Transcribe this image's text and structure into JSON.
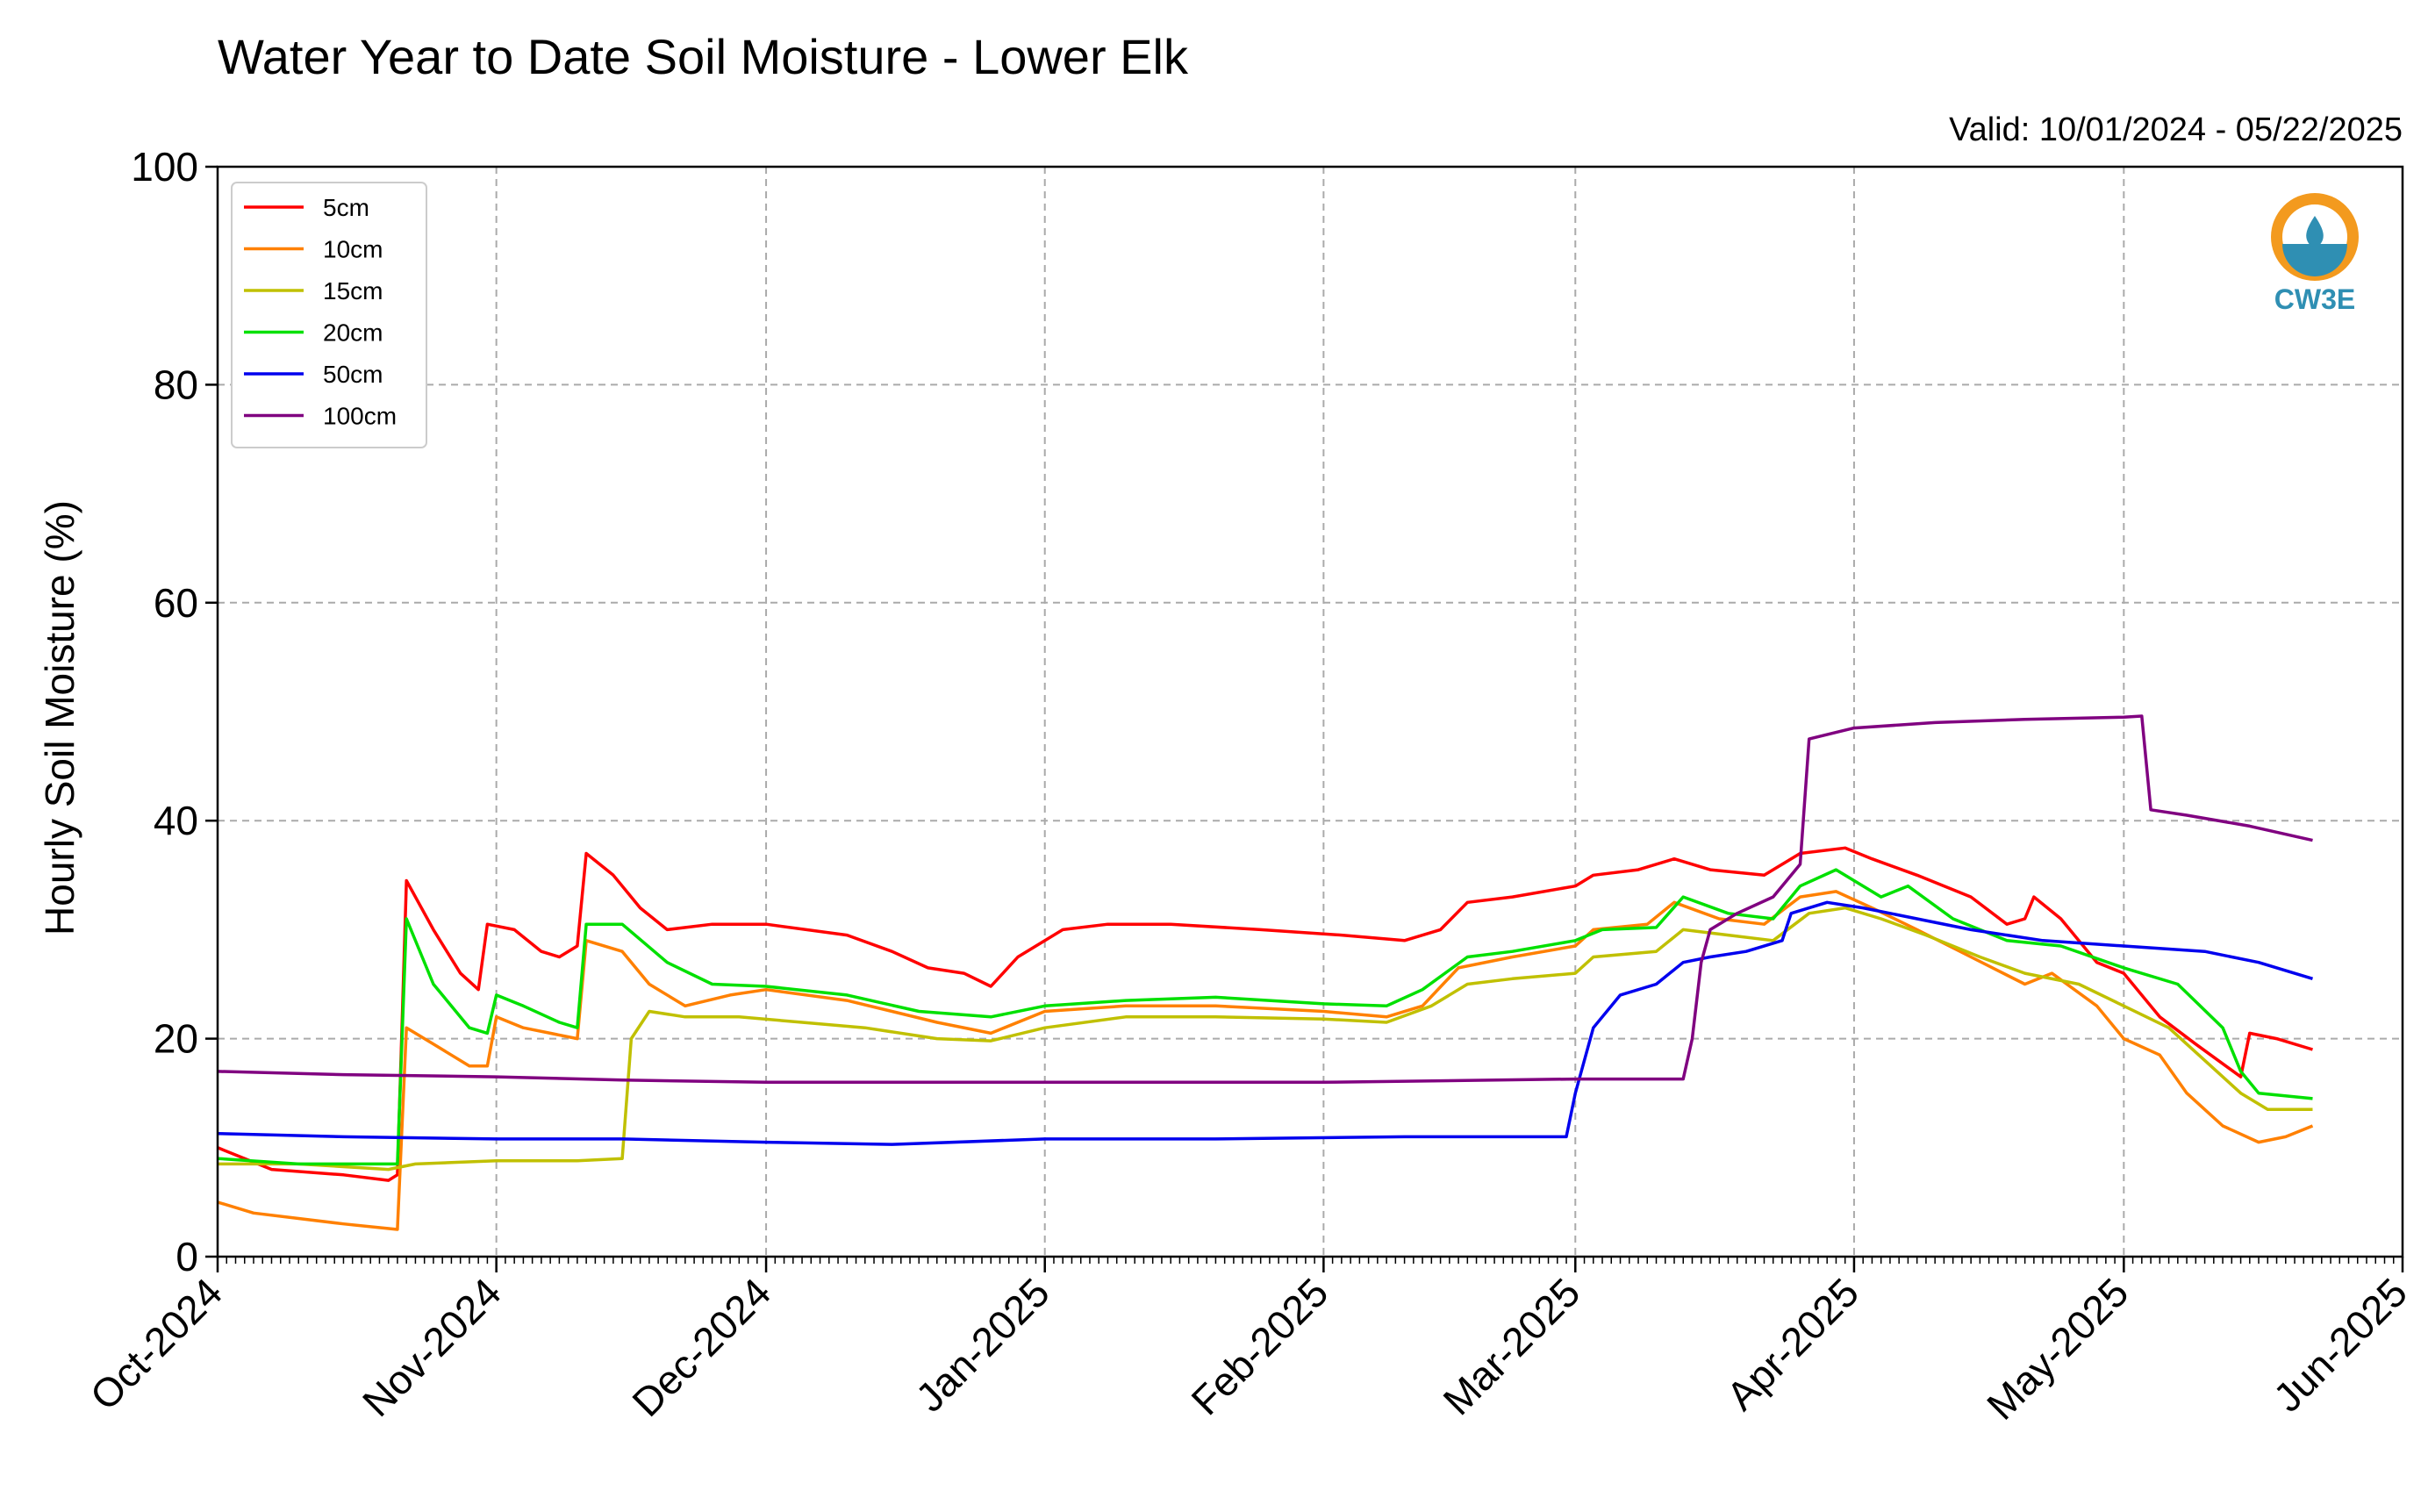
{
  "chart_data": {
    "type": "line",
    "title": "Water Year to Date Soil Moisture - Lower Elk",
    "subtitle": "Valid: 10/01/2024 - 05/22/2025",
    "ylabel": "Hourly Soil Moisture (%)",
    "xlabel": "",
    "ylim": [
      0,
      100
    ],
    "yticks": [
      0,
      20,
      40,
      60,
      80,
      100
    ],
    "xlim": [
      "2024-10-01",
      "2025-06-01"
    ],
    "xticks": [
      {
        "date": "2024-10-01",
        "label": "Oct-2024"
      },
      {
        "date": "2024-11-01",
        "label": "Nov-2024"
      },
      {
        "date": "2024-12-01",
        "label": "Dec-2024"
      },
      {
        "date": "2025-01-01",
        "label": "Jan-2025"
      },
      {
        "date": "2025-02-01",
        "label": "Feb-2025"
      },
      {
        "date": "2025-03-01",
        "label": "Mar-2025"
      },
      {
        "date": "2025-04-01",
        "label": "Apr-2025"
      },
      {
        "date": "2025-05-01",
        "label": "May-2025"
      },
      {
        "date": "2025-06-01",
        "label": "Jun-2025"
      }
    ],
    "grid": true,
    "legend_position": "top-left",
    "logo": "CW3E",
    "series": [
      {
        "name": "5cm",
        "color": "#ff0000",
        "points": [
          [
            "2024-10-01",
            10
          ],
          [
            "2024-10-07",
            8
          ],
          [
            "2024-10-15",
            7.5
          ],
          [
            "2024-10-20",
            7
          ],
          [
            "2024-10-21",
            7.5
          ],
          [
            "2024-10-22",
            34.5
          ],
          [
            "2024-10-25",
            30
          ],
          [
            "2024-10-28",
            26
          ],
          [
            "2024-10-30",
            24.5
          ],
          [
            "2024-10-31",
            30.5
          ],
          [
            "2024-11-03",
            30
          ],
          [
            "2024-11-06",
            28
          ],
          [
            "2024-11-08",
            27.5
          ],
          [
            "2024-11-10",
            28.5
          ],
          [
            "2024-11-11",
            37
          ],
          [
            "2024-11-14",
            35
          ],
          [
            "2024-11-17",
            32
          ],
          [
            "2024-11-20",
            30
          ],
          [
            "2024-11-25",
            30.5
          ],
          [
            "2024-12-01",
            30.5
          ],
          [
            "2024-12-10",
            29.5
          ],
          [
            "2024-12-15",
            28
          ],
          [
            "2024-12-19",
            26.5
          ],
          [
            "2024-12-23",
            26
          ],
          [
            "2024-12-26",
            24.8
          ],
          [
            "2024-12-29",
            27.5
          ],
          [
            "2025-01-03",
            30
          ],
          [
            "2025-01-08",
            30.5
          ],
          [
            "2025-01-15",
            30.5
          ],
          [
            "2025-01-25",
            30
          ],
          [
            "2025-02-03",
            29.5
          ],
          [
            "2025-02-10",
            29
          ],
          [
            "2025-02-14",
            30
          ],
          [
            "2025-02-17",
            32.5
          ],
          [
            "2025-02-22",
            33
          ],
          [
            "2025-03-01",
            34
          ],
          [
            "2025-03-03",
            35
          ],
          [
            "2025-03-08",
            35.5
          ],
          [
            "2025-03-12",
            36.5
          ],
          [
            "2025-03-16",
            35.5
          ],
          [
            "2025-03-22",
            35
          ],
          [
            "2025-03-26",
            37
          ],
          [
            "2025-03-31",
            37.5
          ],
          [
            "2025-04-03",
            36.5
          ],
          [
            "2025-04-08",
            35
          ],
          [
            "2025-04-14",
            33
          ],
          [
            "2025-04-18",
            30.5
          ],
          [
            "2025-04-20",
            31
          ],
          [
            "2025-04-21",
            33
          ],
          [
            "2025-04-24",
            31
          ],
          [
            "2025-04-28",
            27
          ],
          [
            "2025-05-01",
            26
          ],
          [
            "2025-05-05",
            22
          ],
          [
            "2025-05-09",
            19.5
          ],
          [
            "2025-05-14",
            16.5
          ],
          [
            "2025-05-15",
            20.5
          ],
          [
            "2025-05-18",
            20
          ],
          [
            "2025-05-22",
            19
          ]
        ]
      },
      {
        "name": "10cm",
        "color": "#ff8000",
        "points": [
          [
            "2024-10-01",
            5
          ],
          [
            "2024-10-05",
            4
          ],
          [
            "2024-10-10",
            3.5
          ],
          [
            "2024-10-15",
            3
          ],
          [
            "2024-10-21",
            2.5
          ],
          [
            "2024-10-22",
            21
          ],
          [
            "2024-10-25",
            19.5
          ],
          [
            "2024-10-29",
            17.5
          ],
          [
            "2024-10-31",
            17.5
          ],
          [
            "2024-11-01",
            22
          ],
          [
            "2024-11-04",
            21
          ],
          [
            "2024-11-07",
            20.5
          ],
          [
            "2024-11-10",
            20
          ],
          [
            "2024-11-11",
            29
          ],
          [
            "2024-11-15",
            28
          ],
          [
            "2024-11-18",
            25
          ],
          [
            "2024-11-22",
            23
          ],
          [
            "2024-11-27",
            24
          ],
          [
            "2024-12-01",
            24.5
          ],
          [
            "2024-12-10",
            23.5
          ],
          [
            "2024-12-15",
            22.5
          ],
          [
            "2024-12-20",
            21.5
          ],
          [
            "2024-12-26",
            20.5
          ],
          [
            "2025-01-01",
            22.5
          ],
          [
            "2025-01-10",
            23
          ],
          [
            "2025-01-20",
            23
          ],
          [
            "2025-02-01",
            22.5
          ],
          [
            "2025-02-08",
            22
          ],
          [
            "2025-02-12",
            23
          ],
          [
            "2025-02-16",
            26.5
          ],
          [
            "2025-02-22",
            27.5
          ],
          [
            "2025-03-01",
            28.5
          ],
          [
            "2025-03-03",
            30
          ],
          [
            "2025-03-09",
            30.5
          ],
          [
            "2025-03-12",
            32.5
          ],
          [
            "2025-03-17",
            31
          ],
          [
            "2025-03-22",
            30.5
          ],
          [
            "2025-03-26",
            33
          ],
          [
            "2025-03-30",
            33.5
          ],
          [
            "2025-04-03",
            32
          ],
          [
            "2025-04-08",
            30
          ],
          [
            "2025-04-14",
            27.5
          ],
          [
            "2025-04-20",
            25
          ],
          [
            "2025-04-23",
            26
          ],
          [
            "2025-04-28",
            23
          ],
          [
            "2025-05-01",
            20
          ],
          [
            "2025-05-05",
            18.5
          ],
          [
            "2025-05-08",
            15
          ],
          [
            "2025-05-12",
            12
          ],
          [
            "2025-05-16",
            10.5
          ],
          [
            "2025-05-19",
            11
          ],
          [
            "2025-05-22",
            12
          ]
        ]
      },
      {
        "name": "15cm",
        "color": "#c0c000",
        "points": [
          [
            "2024-10-01",
            8.5
          ],
          [
            "2024-10-10",
            8.5
          ],
          [
            "2024-10-20",
            8
          ],
          [
            "2024-10-23",
            8.5
          ],
          [
            "2024-11-01",
            8.8
          ],
          [
            "2024-11-10",
            8.8
          ],
          [
            "2024-11-15",
            9
          ],
          [
            "2024-11-16",
            20
          ],
          [
            "2024-11-18",
            22.5
          ],
          [
            "2024-11-22",
            22
          ],
          [
            "2024-11-28",
            22
          ],
          [
            "2024-12-05",
            21.5
          ],
          [
            "2024-12-12",
            21
          ],
          [
            "2024-12-20",
            20
          ],
          [
            "2024-12-26",
            19.8
          ],
          [
            "2025-01-01",
            21
          ],
          [
            "2025-01-10",
            22
          ],
          [
            "2025-01-20",
            22
          ],
          [
            "2025-02-01",
            21.8
          ],
          [
            "2025-02-08",
            21.5
          ],
          [
            "2025-02-13",
            23
          ],
          [
            "2025-02-17",
            25
          ],
          [
            "2025-02-22",
            25.5
          ],
          [
            "2025-03-01",
            26
          ],
          [
            "2025-03-03",
            27.5
          ],
          [
            "2025-03-10",
            28
          ],
          [
            "2025-03-13",
            30
          ],
          [
            "2025-03-18",
            29.5
          ],
          [
            "2025-03-23",
            29
          ],
          [
            "2025-03-27",
            31.5
          ],
          [
            "2025-03-31",
            32
          ],
          [
            "2025-04-04",
            31
          ],
          [
            "2025-04-09",
            29.5
          ],
          [
            "2025-04-15",
            27.5
          ],
          [
            "2025-04-20",
            26
          ],
          [
            "2025-04-26",
            25
          ],
          [
            "2025-05-01",
            23
          ],
          [
            "2025-05-06",
            21
          ],
          [
            "2025-05-10",
            18
          ],
          [
            "2025-05-14",
            15
          ],
          [
            "2025-05-17",
            13.5
          ],
          [
            "2025-05-22",
            13.5
          ]
        ]
      },
      {
        "name": "20cm",
        "color": "#00e000",
        "points": [
          [
            "2024-10-01",
            9
          ],
          [
            "2024-10-10",
            8.5
          ],
          [
            "2024-10-21",
            8.5
          ],
          [
            "2024-10-22",
            31
          ],
          [
            "2024-10-25",
            25
          ],
          [
            "2024-10-29",
            21
          ],
          [
            "2024-10-31",
            20.5
          ],
          [
            "2024-11-01",
            24
          ],
          [
            "2024-11-04",
            23
          ],
          [
            "2024-11-08",
            21.5
          ],
          [
            "2024-11-10",
            21
          ],
          [
            "2024-11-11",
            30.5
          ],
          [
            "2024-11-15",
            30.5
          ],
          [
            "2024-11-20",
            27
          ],
          [
            "2024-11-25",
            25
          ],
          [
            "2024-12-01",
            24.8
          ],
          [
            "2024-12-10",
            24
          ],
          [
            "2024-12-18",
            22.5
          ],
          [
            "2024-12-26",
            22
          ],
          [
            "2025-01-01",
            23
          ],
          [
            "2025-01-10",
            23.5
          ],
          [
            "2025-01-20",
            23.8
          ],
          [
            "2025-02-01",
            23.2
          ],
          [
            "2025-02-08",
            23
          ],
          [
            "2025-02-12",
            24.5
          ],
          [
            "2025-02-17",
            27.5
          ],
          [
            "2025-02-22",
            28
          ],
          [
            "2025-03-01",
            29
          ],
          [
            "2025-03-04",
            30
          ],
          [
            "2025-03-10",
            30.2
          ],
          [
            "2025-03-13",
            33
          ],
          [
            "2025-03-18",
            31.5
          ],
          [
            "2025-03-23",
            31
          ],
          [
            "2025-03-26",
            34
          ],
          [
            "2025-03-30",
            35.5
          ],
          [
            "2025-04-04",
            33
          ],
          [
            "2025-04-07",
            34
          ],
          [
            "2025-04-12",
            31
          ],
          [
            "2025-04-18",
            29
          ],
          [
            "2025-04-24",
            28.5
          ],
          [
            "2025-05-01",
            26.5
          ],
          [
            "2025-05-07",
            25
          ],
          [
            "2025-05-12",
            21
          ],
          [
            "2025-05-14",
            17
          ],
          [
            "2025-05-16",
            15
          ],
          [
            "2025-05-22",
            14.5
          ]
        ]
      },
      {
        "name": "50cm",
        "color": "#0000ee",
        "points": [
          [
            "2024-10-01",
            11.3
          ],
          [
            "2024-10-15",
            11
          ],
          [
            "2024-11-01",
            10.8
          ],
          [
            "2024-11-15",
            10.8
          ],
          [
            "2024-12-01",
            10.5
          ],
          [
            "2024-12-15",
            10.3
          ],
          [
            "2025-01-01",
            10.8
          ],
          [
            "2025-01-20",
            10.8
          ],
          [
            "2025-02-10",
            11
          ],
          [
            "2025-02-28",
            11
          ],
          [
            "2025-03-01",
            15
          ],
          [
            "2025-03-03",
            21
          ],
          [
            "2025-03-06",
            24
          ],
          [
            "2025-03-10",
            25
          ],
          [
            "2025-03-13",
            27
          ],
          [
            "2025-03-16",
            27.5
          ],
          [
            "2025-03-20",
            28
          ],
          [
            "2025-03-24",
            29
          ],
          [
            "2025-03-25",
            31.5
          ],
          [
            "2025-03-29",
            32.5
          ],
          [
            "2025-04-02",
            32
          ],
          [
            "2025-04-08",
            31
          ],
          [
            "2025-04-14",
            30
          ],
          [
            "2025-04-22",
            29
          ],
          [
            "2025-05-01",
            28.5
          ],
          [
            "2025-05-10",
            28
          ],
          [
            "2025-05-16",
            27
          ],
          [
            "2025-05-22",
            25.5
          ]
        ]
      },
      {
        "name": "100cm",
        "color": "#800080",
        "points": [
          [
            "2024-10-01",
            17
          ],
          [
            "2024-10-15",
            16.7
          ],
          [
            "2024-11-01",
            16.5
          ],
          [
            "2024-11-15",
            16.2
          ],
          [
            "2024-12-01",
            16
          ],
          [
            "2025-01-01",
            16
          ],
          [
            "2025-02-01",
            16
          ],
          [
            "2025-03-01",
            16.3
          ],
          [
            "2025-03-13",
            16.3
          ],
          [
            "2025-03-14",
            20
          ],
          [
            "2025-03-15",
            27
          ],
          [
            "2025-03-16",
            30
          ],
          [
            "2025-03-19",
            31.5
          ],
          [
            "2025-03-23",
            33
          ],
          [
            "2025-03-26",
            36
          ],
          [
            "2025-03-27",
            47.5
          ],
          [
            "2025-04-01",
            48.5
          ],
          [
            "2025-04-10",
            49
          ],
          [
            "2025-04-20",
            49.3
          ],
          [
            "2025-05-01",
            49.5
          ],
          [
            "2025-05-03",
            49.6
          ],
          [
            "2025-05-04",
            41
          ],
          [
            "2025-05-08",
            40.5
          ],
          [
            "2025-05-15",
            39.5
          ],
          [
            "2025-05-22",
            38.2
          ]
        ]
      }
    ]
  }
}
